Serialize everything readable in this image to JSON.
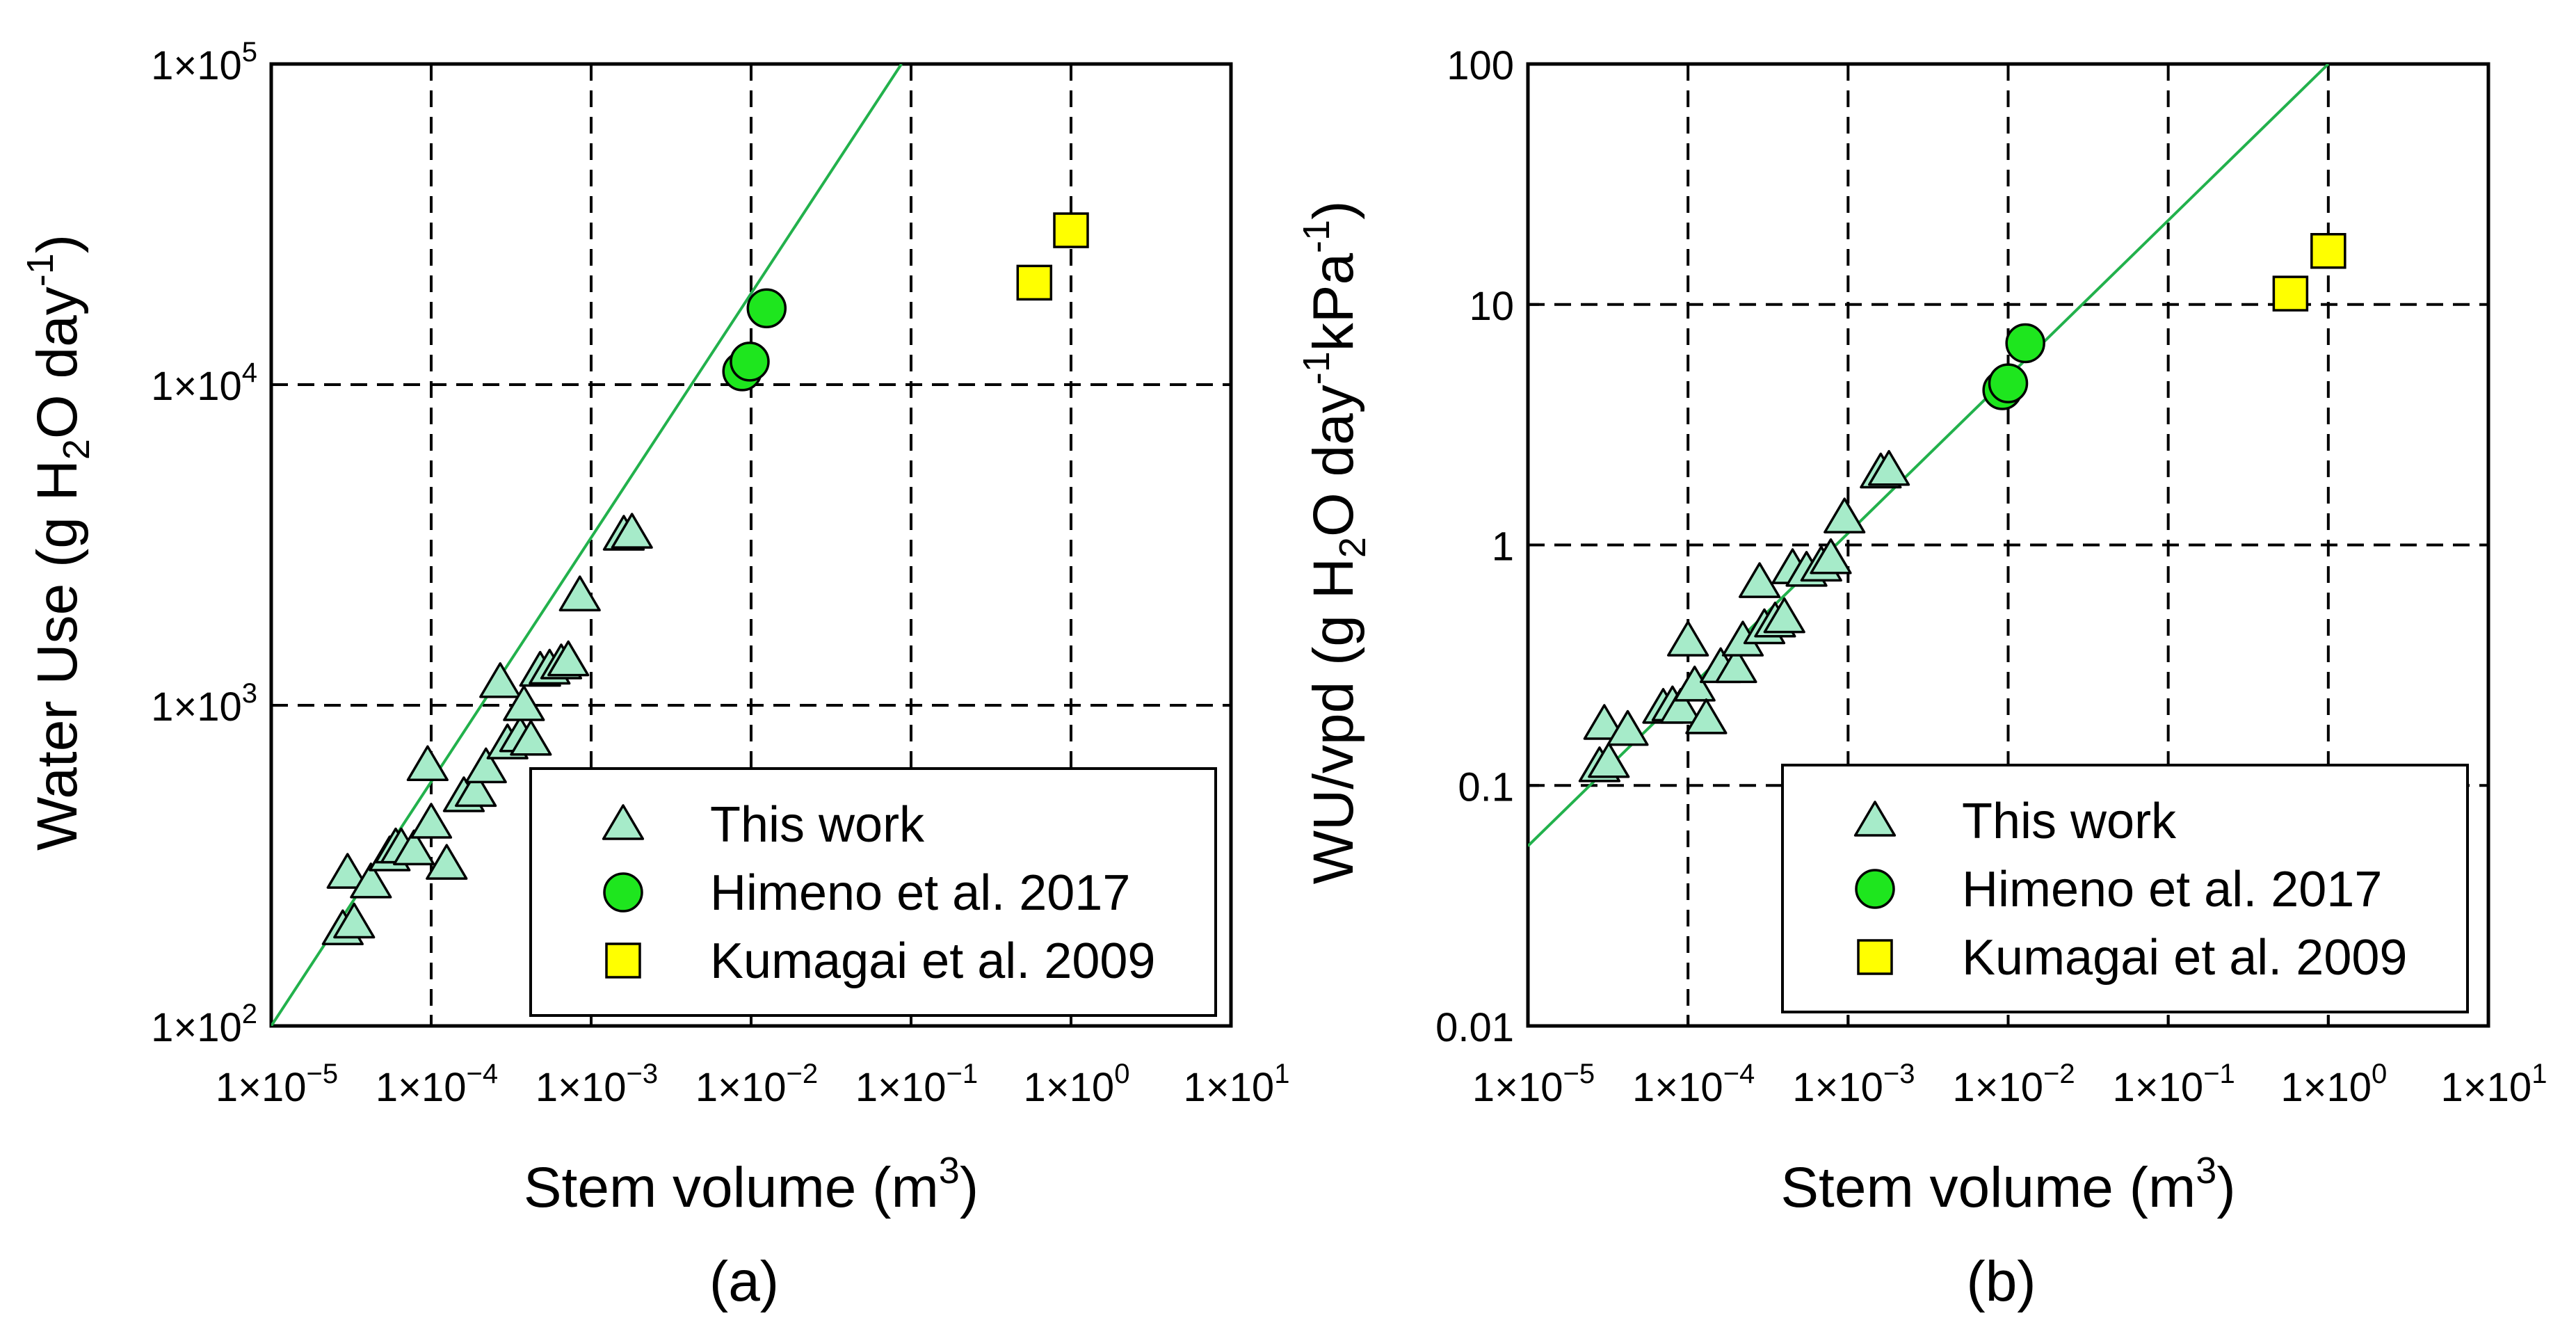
{
  "colors": {
    "this_work_fill": "#A6EBC9",
    "himeno_fill": "#1EE61E",
    "kumagai_fill": "#FFFF00",
    "fit_line": "#22B14C",
    "grid": "#000000"
  },
  "chart_data": [
    {
      "id": "a",
      "panel_label": "(a)",
      "type": "scatter",
      "xscale": "log",
      "yscale": "log",
      "xlim_exp": [
        -5,
        1
      ],
      "ylim_exp": [
        2,
        5
      ],
      "x_ticks": [
        {
          "mant": "1×10",
          "exp": "−5"
        },
        {
          "mant": "1×10",
          "exp": "−4"
        },
        {
          "mant": "1×10",
          "exp": "−3"
        },
        {
          "mant": "1×10",
          "exp": "−2"
        },
        {
          "mant": "1×10",
          "exp": "−1"
        },
        {
          "mant": "1×10",
          "exp": "0"
        },
        {
          "mant": "1×10",
          "exp": "1"
        }
      ],
      "y_ticks": [
        {
          "mant": "1×10",
          "exp": "2"
        },
        {
          "mant": "1×10",
          "exp": "3"
        },
        {
          "mant": "1×10",
          "exp": "4"
        },
        {
          "mant": "1×10",
          "exp": "5"
        }
      ],
      "xlabel": {
        "text": "Stem volume (m",
        "sup": "3",
        "end": ")"
      },
      "ylabel": {
        "p1": "Water Use (g H",
        "sub1": "2",
        "p2": "O day",
        "sup1": "-1",
        "p3": ")"
      },
      "legend_position": "bottom-right",
      "grid": "dashed",
      "fit_line": {
        "x": [
          1e-05,
          0.0871
        ],
        "y": [
          100,
          100000
        ]
      },
      "series": [
        {
          "name": "This work",
          "marker": "triangle",
          "points": [
            [
              2.8e-05,
              200
            ],
            [
              3.3e-05,
              210
            ],
            [
              3e-05,
              300
            ],
            [
              4.2e-05,
              280
            ],
            [
              5.5e-05,
              340
            ],
            [
              6e-05,
              360
            ],
            [
              6.5e-05,
              360
            ],
            [
              7.8e-05,
              355
            ],
            [
              0.0001,
              430
            ],
            [
              9.5e-05,
              650
            ],
            [
              0.000125,
              320
            ],
            [
              0.00016,
              520
            ],
            [
              0.00019,
              540
            ],
            [
              0.00022,
              640
            ],
            [
              0.00027,
              1180
            ],
            [
              0.0003,
              760
            ],
            [
              0.00036,
              800
            ],
            [
              0.00038,
              1000
            ],
            [
              0.00042,
              780
            ],
            [
              0.00048,
              1280
            ],
            [
              0.00055,
              1300
            ],
            [
              0.00065,
              1350
            ],
            [
              0.00072,
              1380
            ],
            [
              0.00085,
              2200
            ],
            [
              0.0016,
              3400
            ],
            [
              0.0018,
              3450
            ]
          ]
        },
        {
          "name": "Himeno et al. 2017",
          "marker": "circle",
          "points": [
            [
              0.0088,
              11000
            ],
            [
              0.0098,
              11800
            ],
            [
              0.0125,
              17300
            ]
          ]
        },
        {
          "name": "Kumagai et al. 2009",
          "marker": "square",
          "points": [
            [
              0.59,
              20800
            ],
            [
              1.0,
              30300
            ]
          ]
        }
      ]
    },
    {
      "id": "b",
      "panel_label": "(b)",
      "type": "scatter",
      "xscale": "log",
      "yscale": "log",
      "xlim_exp": [
        -5,
        1
      ],
      "ylim_exp": [
        -2,
        2
      ],
      "x_ticks": [
        {
          "mant": "1×10",
          "exp": "−5"
        },
        {
          "mant": "1×10",
          "exp": "−4"
        },
        {
          "mant": "1×10",
          "exp": "−3"
        },
        {
          "mant": "1×10",
          "exp": "−2"
        },
        {
          "mant": "1×10",
          "exp": "−1"
        },
        {
          "mant": "1×10",
          "exp": "0"
        },
        {
          "mant": "1×10",
          "exp": "1"
        }
      ],
      "y_ticks": [
        "0.01",
        "0.1",
        "1",
        "10",
        "100"
      ],
      "xlabel": {
        "text": "Stem volume (m",
        "sup": "3",
        "end": ")"
      },
      "ylabel": {
        "p1": "WU/vpd (g H",
        "sub1": "2",
        "p2": "O day",
        "sup1": "-1",
        "p3": "kPa",
        "sup2": "-1",
        "p4": ")"
      },
      "legend_position": "bottom-right",
      "grid": "dashed",
      "fit_line": {
        "x": [
          1e-05,
          1.0
        ],
        "y": [
          0.056,
          100
        ]
      },
      "series": [
        {
          "name": "This work",
          "marker": "triangle",
          "points": [
            [
              2.8e-05,
              0.12
            ],
            [
              3.2e-05,
              0.125
            ],
            [
              3e-05,
              0.18
            ],
            [
              4.2e-05,
              0.17
            ],
            [
              7e-05,
              0.21
            ],
            [
              8e-05,
              0.215
            ],
            [
              9e-05,
              0.21
            ],
            [
              0.0001,
              0.4
            ],
            [
              0.00011,
              0.26
            ],
            [
              0.00013,
              0.19
            ],
            [
              0.00016,
              0.31
            ],
            [
              0.0002,
              0.31
            ],
            [
              0.00022,
              0.4
            ],
            [
              0.00028,
              0.7
            ],
            [
              0.0003,
              0.45
            ],
            [
              0.00035,
              0.48
            ],
            [
              0.0004,
              0.5
            ],
            [
              0.00045,
              0.8
            ],
            [
              0.00055,
              0.78
            ],
            [
              0.00068,
              0.82
            ],
            [
              0.00078,
              0.88
            ],
            [
              0.00095,
              1.3
            ],
            [
              0.0016,
              2.0
            ],
            [
              0.0018,
              2.05
            ]
          ]
        },
        {
          "name": "Himeno et al. 2017",
          "marker": "circle",
          "points": [
            [
              0.0092,
              4.4
            ],
            [
              0.01,
              4.7
            ],
            [
              0.0128,
              6.9
            ]
          ]
        },
        {
          "name": "Kumagai et al. 2009",
          "marker": "square",
          "points": [
            [
              0.58,
              11.1
            ],
            [
              1.0,
              16.7
            ]
          ]
        }
      ]
    }
  ]
}
